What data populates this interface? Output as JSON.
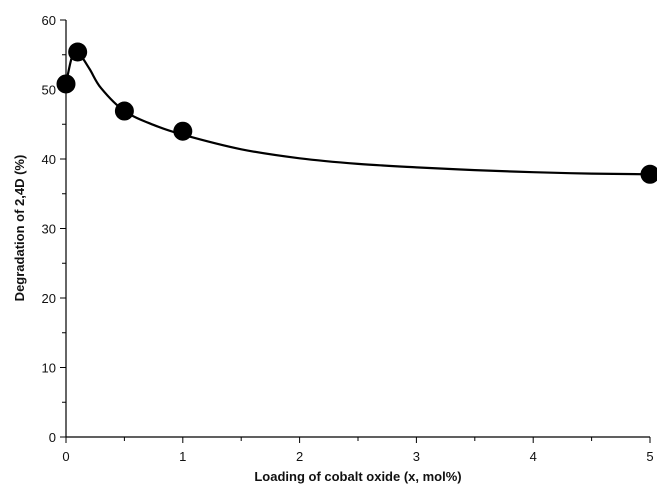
{
  "chart_data": {
    "type": "scatter",
    "title": "",
    "xlabel": "Loading of cobalt oxide (x, mol%)",
    "ylabel": "Degradation of 2,4D (%)",
    "xlim": [
      0,
      5
    ],
    "ylim": [
      0,
      60
    ],
    "x_ticks": [
      0,
      1,
      2,
      3,
      4,
      5
    ],
    "x_tick_labels": [
      "0",
      "1",
      "2",
      "3",
      "4",
      "5"
    ],
    "y_ticks": [
      0,
      10,
      20,
      30,
      40,
      50,
      60
    ],
    "y_tick_labels": [
      "0",
      "10",
      "20",
      "30",
      "40",
      "50",
      "60"
    ],
    "grid": false,
    "series": [
      {
        "x": [
          0,
          0.1,
          0.5,
          1,
          5
        ],
        "y": [
          50.8,
          55.4,
          46.9,
          44.0,
          37.8
        ],
        "color": "#000000"
      }
    ],
    "fit_curve": {
      "x": [
        0,
        0.05,
        0.1,
        0.2,
        0.3,
        0.5,
        0.75,
        1,
        1.5,
        2,
        2.5,
        3,
        3.5,
        4,
        4.5,
        5
      ],
      "y": [
        50.8,
        54.6,
        55.4,
        53.0,
        50.2,
        46.9,
        44.9,
        43.5,
        41.4,
        40.1,
        39.3,
        38.8,
        38.4,
        38.1,
        37.9,
        37.8
      ],
      "color": "#000000"
    }
  }
}
